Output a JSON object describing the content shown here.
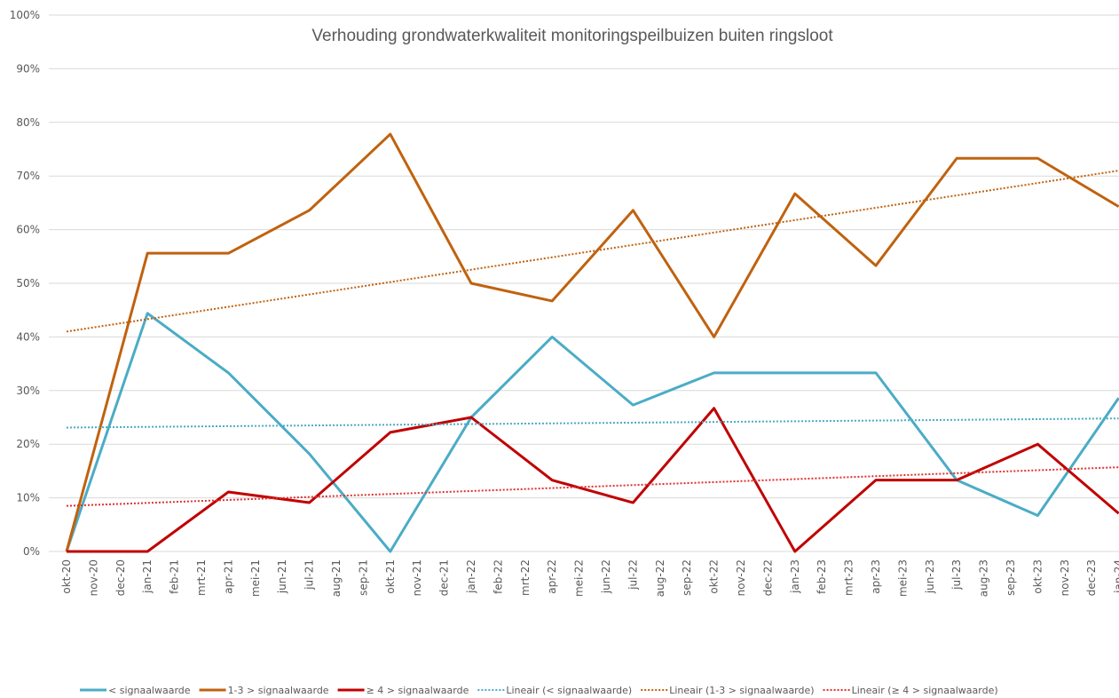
{
  "chart_data": {
    "type": "line",
    "title": "Verhouding grondwaterkwaliteit monitoringspeilbuizen buiten ringsloot",
    "categories": [
      "okt-20",
      "nov-20",
      "dec-20",
      "jan-21",
      "feb-21",
      "mrt-21",
      "apr-21",
      "mei-21",
      "jun-21",
      "jul-21",
      "aug-21",
      "sep-21",
      "okt-21",
      "nov-21",
      "dec-21",
      "jan-22",
      "feb-22",
      "mrt-22",
      "apr-22",
      "mei-22",
      "jun-22",
      "jul-22",
      "aug-22",
      "sep-22",
      "okt-22",
      "nov-22",
      "dec-22",
      "jan-23",
      "feb-23",
      "mrt-23",
      "apr-23",
      "mei-23",
      "jun-23",
      "jul-23",
      "aug-23",
      "sep-23",
      "okt-23",
      "nov-23",
      "dec-23",
      "jan-24"
    ],
    "connect_gaps": true,
    "series": [
      {
        "name": "< signaalwaarde",
        "color": "#4bacc6",
        "style": "solid",
        "values": [
          0,
          null,
          null,
          44.4,
          null,
          null,
          33.3,
          null,
          null,
          18.2,
          null,
          null,
          0,
          null,
          null,
          25,
          null,
          null,
          40,
          null,
          null,
          27.3,
          null,
          null,
          33.3,
          null,
          null,
          33.3,
          null,
          null,
          33.3,
          null,
          null,
          13.3,
          null,
          null,
          6.7,
          null,
          null,
          28.6
        ]
      },
      {
        "name": "1-3 > signaalwaarde",
        "color": "#c0620f",
        "style": "solid",
        "values": [
          0,
          null,
          null,
          55.6,
          null,
          null,
          55.6,
          null,
          null,
          63.6,
          null,
          null,
          77.8,
          null,
          null,
          50,
          null,
          null,
          46.7,
          null,
          null,
          63.6,
          null,
          null,
          40,
          null,
          null,
          66.7,
          null,
          null,
          53.3,
          null,
          null,
          73.3,
          null,
          null,
          73.3,
          null,
          null,
          64.3
        ]
      },
      {
        "name": "≥ 4 > signaalwaarde",
        "color": "#c00000",
        "style": "solid",
        "values": [
          0,
          null,
          null,
          0,
          null,
          null,
          11.1,
          null,
          null,
          9.1,
          null,
          null,
          22.2,
          null,
          null,
          25,
          null,
          null,
          13.3,
          null,
          null,
          9.1,
          null,
          null,
          26.7,
          null,
          null,
          0,
          null,
          null,
          13.3,
          null,
          null,
          13.3,
          null,
          null,
          20,
          null,
          null,
          7.1
        ]
      },
      {
        "name": "Lineair (< signaalwaarde)",
        "color": "#4bacc6",
        "style": "dotted",
        "values": [
          23.1,
          null,
          null,
          null,
          null,
          null,
          null,
          null,
          null,
          null,
          null,
          null,
          null,
          null,
          null,
          null,
          null,
          null,
          null,
          null,
          null,
          null,
          null,
          null,
          null,
          null,
          null,
          null,
          null,
          null,
          null,
          null,
          null,
          null,
          null,
          null,
          null,
          null,
          null,
          24.8
        ]
      },
      {
        "name": "Lineair (1-3 > signaalwaarde)",
        "color": "#c0620f",
        "style": "dotted",
        "values": [
          41,
          null,
          null,
          null,
          null,
          null,
          null,
          null,
          null,
          null,
          null,
          null,
          null,
          null,
          null,
          null,
          null,
          null,
          null,
          null,
          null,
          null,
          null,
          null,
          null,
          null,
          null,
          null,
          null,
          null,
          null,
          null,
          null,
          null,
          null,
          null,
          null,
          null,
          null,
          71
        ]
      },
      {
        "name": "Lineair (≥ 4 > signaalwaarde)",
        "color": "#e03030",
        "style": "dotted",
        "values": [
          8.5,
          null,
          null,
          null,
          null,
          null,
          null,
          null,
          null,
          null,
          null,
          null,
          null,
          null,
          null,
          null,
          null,
          null,
          null,
          null,
          null,
          null,
          null,
          null,
          null,
          null,
          null,
          null,
          null,
          null,
          null,
          null,
          null,
          null,
          null,
          null,
          null,
          null,
          null,
          15.7
        ]
      }
    ],
    "ylim": [
      0,
      100
    ],
    "yticks": [
      {
        "value": 0,
        "label": "0%"
      },
      {
        "value": 10,
        "label": "10%"
      },
      {
        "value": 20,
        "label": "20%"
      },
      {
        "value": 30,
        "label": "30%"
      },
      {
        "value": 40,
        "label": "40%"
      },
      {
        "value": 50,
        "label": "50%"
      },
      {
        "value": 60,
        "label": "60%"
      },
      {
        "value": 70,
        "label": "70%"
      },
      {
        "value": 80,
        "label": "80%"
      },
      {
        "value": 90,
        "label": "90%"
      },
      {
        "value": 100,
        "label": "100%"
      }
    ],
    "grid": true,
    "legend": "bottom"
  }
}
